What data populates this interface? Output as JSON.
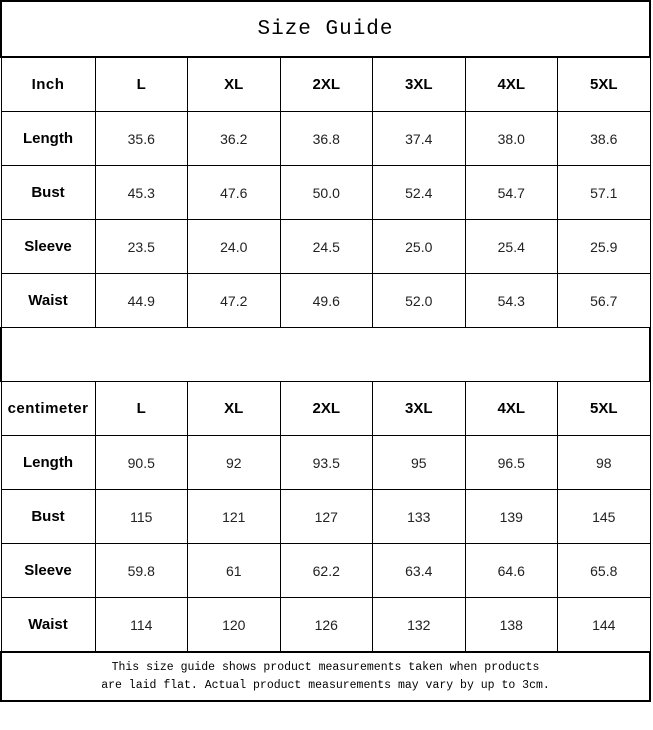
{
  "title": "Size Guide",
  "sections": {
    "inch": {
      "unit": "Inch",
      "sizes": [
        "L",
        "XL",
        "2XL",
        "3XL",
        "4XL",
        "5XL"
      ],
      "rows": [
        {
          "label": "Length",
          "values": [
            "35.6",
            "36.2",
            "36.8",
            "37.4",
            "38.0",
            "38.6"
          ]
        },
        {
          "label": "Bust",
          "values": [
            "45.3",
            "47.6",
            "50.0",
            "52.4",
            "54.7",
            "57.1"
          ]
        },
        {
          "label": "Sleeve",
          "values": [
            "23.5",
            "24.0",
            "24.5",
            "25.0",
            "25.4",
            "25.9"
          ]
        },
        {
          "label": "Waist",
          "values": [
            "44.9",
            "47.2",
            "49.6",
            "52.0",
            "54.3",
            "56.7"
          ]
        }
      ]
    },
    "cm": {
      "unit": "centimeter",
      "sizes": [
        "L",
        "XL",
        "2XL",
        "3XL",
        "4XL",
        "5XL"
      ],
      "rows": [
        {
          "label": "Length",
          "values": [
            "90.5",
            "92",
            "93.5",
            "95",
            "96.5",
            "98"
          ]
        },
        {
          "label": "Bust",
          "values": [
            "115",
            "121",
            "127",
            "133",
            "139",
            "145"
          ]
        },
        {
          "label": "Sleeve",
          "values": [
            "59.8",
            "61",
            "62.2",
            "63.4",
            "64.6",
            "65.8"
          ]
        },
        {
          "label": "Waist",
          "values": [
            "114",
            "120",
            "126",
            "132",
            "138",
            "144"
          ]
        }
      ]
    }
  },
  "note": {
    "line1": "This size guide shows product measurements taken when products",
    "line2": "are laid flat. Actual product measurements may vary by up to 3cm."
  }
}
